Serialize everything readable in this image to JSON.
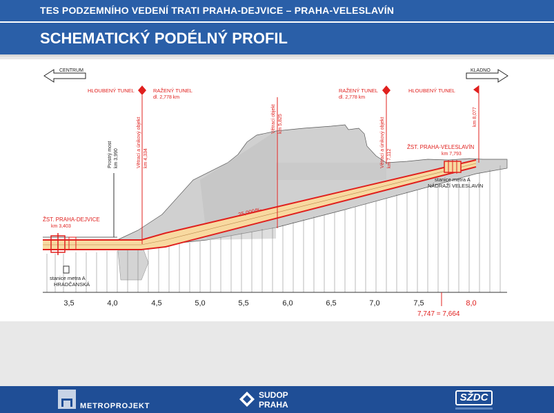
{
  "header": {
    "top_title": "TES PODZEMNÍHO VEDENÍ TRATI PRAHA-DEJVICE – PRAHA-VELESLAVÍN",
    "slide_title": "SCHEMATICKÝ PODÉLNÝ PROFIL"
  },
  "diagram": {
    "dir_left": "CENTRUM",
    "dir_right": "KLADNO",
    "label_hloubeny_left": "HLOUBENÝ TUNEL",
    "label_razeny_left": "RAŽENÝ TUNEL",
    "label_razeny_left_len": "dl. 2,778 km",
    "label_razeny_right": "RAŽENÝ TUNEL",
    "label_razeny_right_len": "dl. 2,778 km",
    "label_hloubeny_right": "HLOUBENÝ TUNEL",
    "station_left": "ŽST. PRAHA-DEJVICE",
    "station_left_km": "km 3,403",
    "station_right": "ŽST. PRAHA-VELESLAVÍN",
    "station_right_km": "km 7,793",
    "vert_prostry_most": "Prostrý most",
    "vert_prostry_most_km": "km 3,990",
    "vert_vetraci_1": "Větrací a únikový objekt",
    "vert_vetraci_1_km": "km 4,334",
    "vert_vetraci_2": "Větrací objekt",
    "vert_vetraci_2_km": "km 5,825",
    "vert_vetraci_3": "Větrací a únikový objekt",
    "vert_vetraci_3_km": "km 7,112",
    "vert_km_end": "km 8,077",
    "gradient": "25,000/‰",
    "metro_left_1": "stanice metra A",
    "metro_left_2": "HRADČANSKÁ",
    "metro_right_1": "stanice metra A",
    "metro_right_2": "NÁDRAŽÍ VELESLAVÍN",
    "km_equation": "7,747 = 7,664",
    "axis_ticks": [
      "3,5",
      "4,0",
      "4,5",
      "5,0",
      "5,5",
      "6,0",
      "6,5",
      "7,0",
      "7,5",
      "8,0"
    ]
  },
  "footer": {
    "logo_metroprojekt": "METROPROJEKT",
    "logo_sudop_1": "SUDOP",
    "logo_sudop_2": "PRAHA",
    "logo_szdc": "SŽDC"
  },
  "colors": {
    "header_blue": "#2a5fa8",
    "footer_blue": "#1f4e96",
    "tunnel_red": "#e0201e",
    "tunnel_fill": "#f8d9a0"
  }
}
